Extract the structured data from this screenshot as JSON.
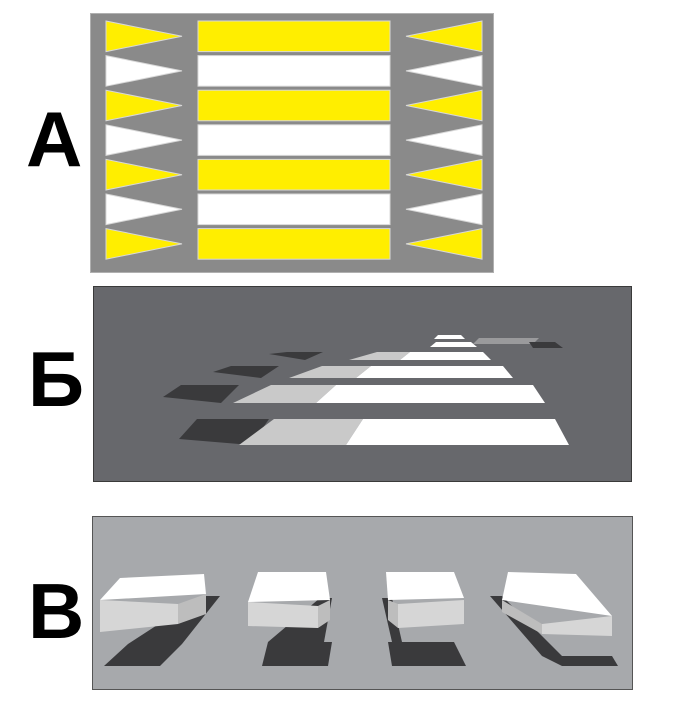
{
  "labels": {
    "a": "А",
    "b": "Б",
    "v": "В"
  },
  "colors": {
    "yellow": "#ffee00",
    "white": "#ffffff",
    "panel_a_bg": "#8a8a8a",
    "panel_b_bg": "#67686c",
    "panel_c_bg": "#a7a9ac",
    "shadow": "#3a3a3c",
    "light_gray": "#c9c9c9"
  }
}
